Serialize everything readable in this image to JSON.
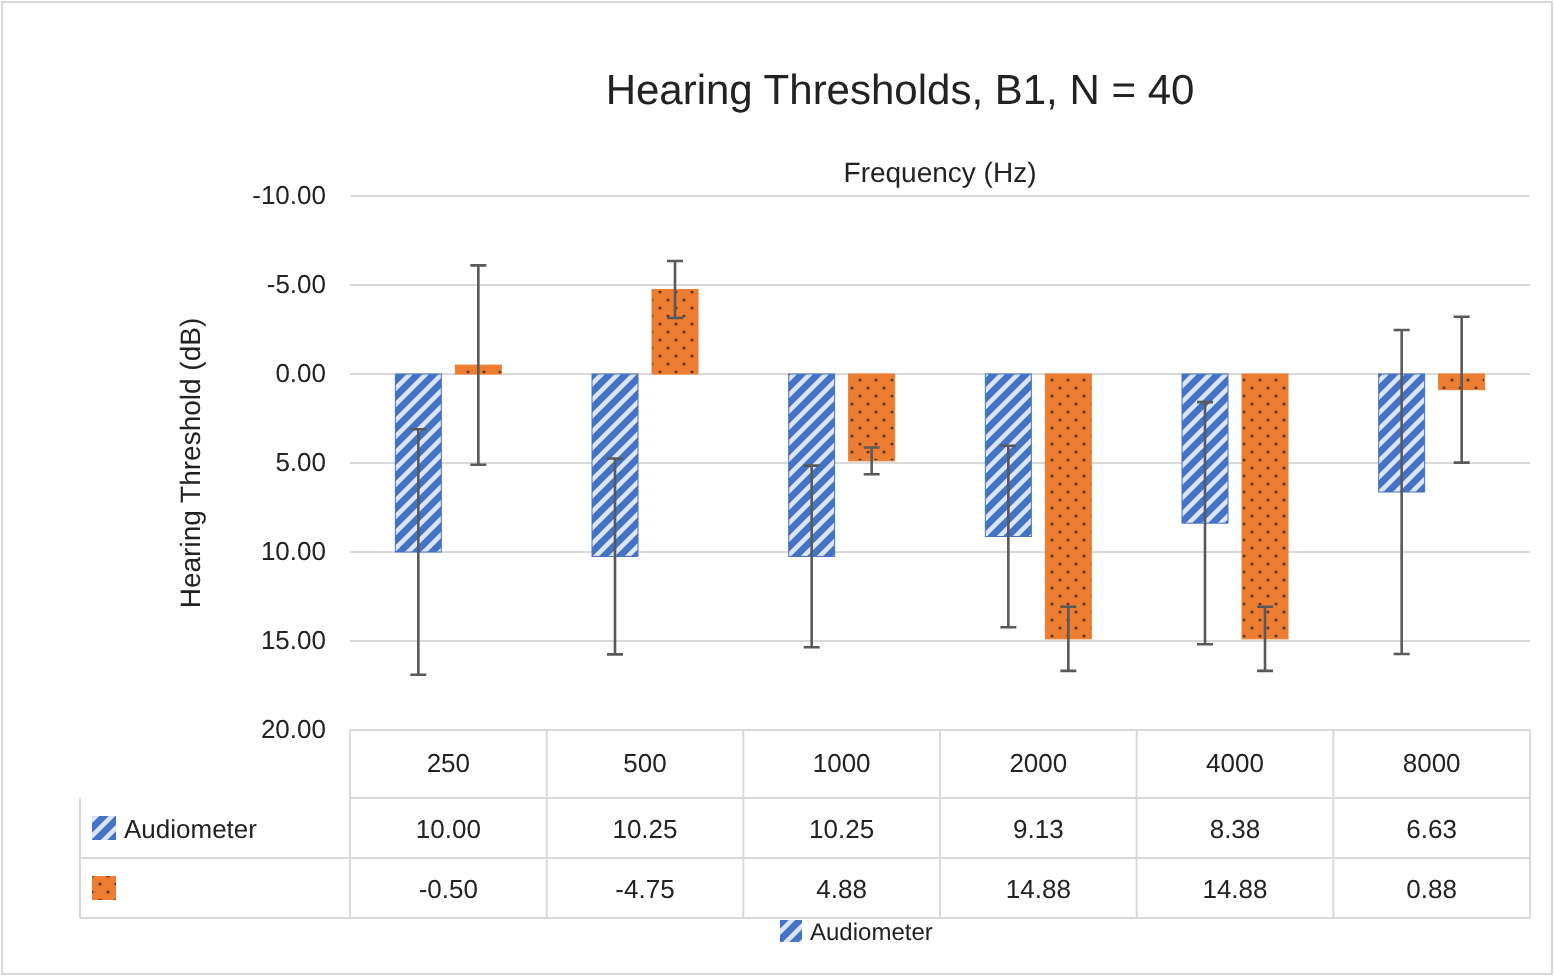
{
  "chart_data": {
    "type": "bar",
    "title": "Hearing Thresholds, B1, N = 40",
    "xlabel": "Frequency (Hz)",
    "ylabel": "Hearing Threshold (dB)",
    "categories": [
      "250",
      "500",
      "1000",
      "2000",
      "4000",
      "8000"
    ],
    "series": [
      {
        "name": "Audiometer",
        "color": "#4472c4",
        "values": [
          10.0,
          10.25,
          10.25,
          9.13,
          8.38,
          6.63
        ],
        "value_labels": [
          "10.00",
          "10.25",
          "10.25",
          "9.13",
          "8.38",
          "6.63"
        ],
        "errors": [
          6.9,
          5.5,
          5.1,
          5.1,
          6.8,
          9.1
        ]
      },
      {
        "color": "#ed7d31",
        "values": [
          -0.5,
          -4.75,
          4.88,
          14.88,
          14.88,
          0.88
        ],
        "value_labels": [
          "-0.50",
          "-4.75",
          "4.88",
          "14.88",
          "14.88",
          "0.88"
        ],
        "errors": [
          5.6,
          1.6,
          0.75,
          1.8,
          1.8,
          4.1
        ]
      }
    ],
    "ylim": [
      20,
      -10
    ],
    "yticks": [
      {
        "value": -10,
        "label": "-10.00"
      },
      {
        "value": -5,
        "label": "-5.00"
      },
      {
        "value": 0,
        "label": "0.00"
      },
      {
        "value": 5,
        "label": "5.00"
      },
      {
        "value": 10,
        "label": "10.00"
      },
      {
        "value": 15,
        "label": "15.00"
      },
      {
        "value": 20,
        "label": "20.00"
      }
    ],
    "grid": "y",
    "legend": "bottom"
  }
}
